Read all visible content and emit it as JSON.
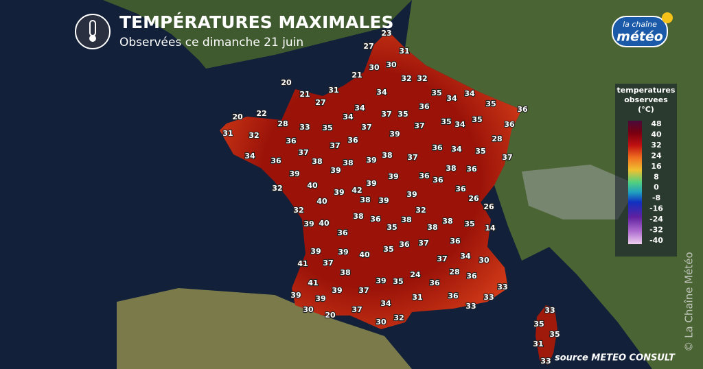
{
  "header": {
    "title": "TEMPÉRATURES MAXIMALES",
    "subtitle": "Observées ce dimanche 21 juin"
  },
  "logo": {
    "line1": "la chaîne",
    "line2": "météo"
  },
  "legend": {
    "title": [
      "temperatures",
      "observees",
      "(°C)"
    ],
    "ticks": [
      48,
      40,
      32,
      24,
      16,
      8,
      0,
      -8,
      -16,
      -24,
      -32,
      -40
    ]
  },
  "map": {
    "temperatures": [
      23,
      27,
      31,
      30,
      30,
      21,
      32,
      32,
      20,
      21,
      31,
      34,
      35,
      34,
      27,
      34,
      35,
      36,
      20,
      22,
      34,
      37,
      35,
      36,
      34,
      28,
      33,
      35,
      37,
      37,
      35,
      34,
      35,
      36,
      31,
      32,
      39,
      36,
      36,
      28,
      37,
      37,
      36,
      34,
      35,
      34,
      38,
      38,
      39,
      38,
      37,
      36,
      37,
      39,
      38,
      36,
      39,
      36,
      39,
      39,
      40,
      39,
      42,
      36,
      36,
      32,
      39,
      39,
      26,
      40,
      38,
      32,
      26,
      32,
      38,
      36,
      39,
      40,
      35,
      38,
      38,
      38,
      35,
      14,
      36,
      36,
      39,
      39,
      40,
      35,
      36,
      37,
      37,
      37,
      34,
      30,
      41,
      38,
      39,
      35,
      24,
      28,
      36,
      41,
      36,
      39,
      37,
      33,
      39,
      39,
      36,
      33,
      31,
      34,
      30,
      37,
      33,
      20,
      33,
      32,
      30,
      35,
      35,
      31,
      33
    ]
  },
  "source": "source METEO CONSULT",
  "watermark": "© La Chaîne Météo"
}
